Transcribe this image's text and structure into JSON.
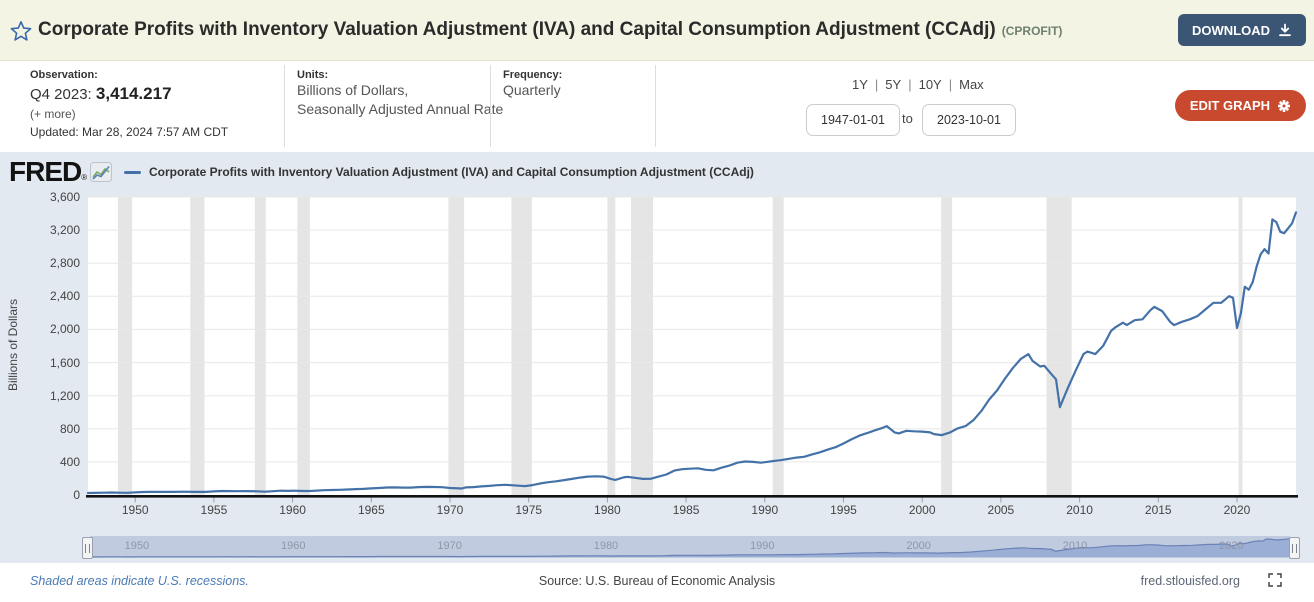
{
  "header": {
    "title": "Corporate Profits with Inventory Valuation Adjustment (IVA) and Capital Consumption Adjustment (CCAdj)",
    "series_id": "(CPROFIT)",
    "download_label": "DOWNLOAD"
  },
  "observation": {
    "label": "Observation:",
    "period": "Q4 2023:",
    "value": "3,414.217",
    "more_label": "(+ more)",
    "updated": "Updated: Mar 28, 2024 7:57 AM CDT"
  },
  "units": {
    "label": "Units:",
    "line1": "Billions of Dollars,",
    "line2": "Seasonally Adjusted Annual Rate"
  },
  "frequency": {
    "label": "Frequency:",
    "value": "Quarterly"
  },
  "range_selector": {
    "options": [
      "1Y",
      "5Y",
      "10Y",
      "Max"
    ],
    "separator": "|",
    "start_date": "1947-01-01",
    "to_label": "to",
    "end_date": "2023-10-01"
  },
  "edit_graph": {
    "label": "EDIT GRAPH"
  },
  "chart_header": {
    "logo": "FRED",
    "reg_mark": "®",
    "legend_label": "Corporate Profits with Inventory Valuation Adjustment (IVA) and Capital Consumption Adjustment (CCAdj)"
  },
  "footer": {
    "recession_note": "Shaded areas indicate U.S. recessions.",
    "source": "Source: U.S. Bureau of Economic Analysis",
    "site": "fred.stlouisfed.org"
  },
  "colors": {
    "line": "#4472a8",
    "recession_band": "#e5e5e5",
    "gridline": "#e8e8e8",
    "axis": "#111111",
    "plot_bg": "#ffffff",
    "chart_bg": "#e3e9f1",
    "nav_bg": "#c0cbe0",
    "nav_fill": "#9aaed6",
    "nav_stroke": "#6b82b5",
    "download_button": "#3b5675",
    "edit_button": "#c8492e",
    "header_bg": "#f4f4e4"
  },
  "chart_data": {
    "type": "line",
    "title": "Corporate Profits with Inventory Valuation Adjustment (IVA) and Capital Consumption Adjustment (CCAdj)",
    "ylabel": "Billions of Dollars",
    "xlabel": "",
    "ylim": [
      0,
      3600
    ],
    "xlim": [
      1947,
      2023.75
    ],
    "grid": true,
    "legend_position": "top",
    "y_ticks": [
      0,
      400,
      800,
      1200,
      1600,
      2000,
      2400,
      2800,
      3200,
      3600
    ],
    "x_ticks": [
      1950,
      1955,
      1960,
      1965,
      1970,
      1975,
      1980,
      1985,
      1990,
      1995,
      2000,
      2005,
      2010,
      2015,
      2020
    ],
    "nav_ticks": [
      1950,
      1960,
      1970,
      1980,
      1990,
      2000,
      2010,
      2020
    ],
    "last_observation": {
      "period": "Q4 2023",
      "value": 3414.217
    },
    "recessions": [
      [
        1948.9,
        1949.8
      ],
      [
        1953.5,
        1954.4
      ],
      [
        1957.6,
        1958.3
      ],
      [
        1960.3,
        1961.1
      ],
      [
        1969.9,
        1970.9
      ],
      [
        1973.9,
        1975.2
      ],
      [
        1980.0,
        1980.5
      ],
      [
        1981.5,
        1982.9
      ],
      [
        1990.5,
        1991.2
      ],
      [
        2001.2,
        2001.9
      ],
      [
        2007.9,
        2009.5
      ],
      [
        2020.1,
        2020.35
      ]
    ],
    "series": [
      {
        "name": "Corporate Profits with Inventory Valuation Adjustment (IVA) and Capital Consumption Adjustment (CCAdj)",
        "units": "Billions of Dollars, Seasonally Adjusted Annual Rate",
        "points": [
          [
            1947,
            24
          ],
          [
            1947.5,
            25
          ],
          [
            1948,
            28
          ],
          [
            1948.5,
            30
          ],
          [
            1949,
            28
          ],
          [
            1949.5,
            27
          ],
          [
            1950,
            31
          ],
          [
            1950.5,
            36
          ],
          [
            1951,
            37
          ],
          [
            1951.5,
            39
          ],
          [
            1952,
            38
          ],
          [
            1952.5,
            38
          ],
          [
            1953,
            40
          ],
          [
            1953.75,
            37
          ],
          [
            1954.5,
            38
          ],
          [
            1955,
            44
          ],
          [
            1955.5,
            48
          ],
          [
            1956,
            47
          ],
          [
            1956.5,
            46
          ],
          [
            1957,
            47
          ],
          [
            1957.75,
            45
          ],
          [
            1958.25,
            40
          ],
          [
            1958.75,
            46
          ],
          [
            1959.25,
            52
          ],
          [
            1959.75,
            50
          ],
          [
            1960,
            52
          ],
          [
            1960.75,
            48
          ],
          [
            1961.25,
            50
          ],
          [
            1962,
            58
          ],
          [
            1962.5,
            60
          ],
          [
            1963,
            63
          ],
          [
            1963.5,
            67
          ],
          [
            1964,
            71
          ],
          [
            1964.5,
            74
          ],
          [
            1965,
            80
          ],
          [
            1965.5,
            85
          ],
          [
            1966,
            91
          ],
          [
            1966.5,
            92
          ],
          [
            1967,
            89
          ],
          [
            1967.5,
            90
          ],
          [
            1968,
            95
          ],
          [
            1968.5,
            98
          ],
          [
            1969,
            97
          ],
          [
            1969.5,
            94
          ],
          [
            1970,
            85
          ],
          [
            1970.75,
            79
          ],
          [
            1971,
            92
          ],
          [
            1971.5,
            96
          ],
          [
            1972,
            104
          ],
          [
            1972.5,
            110
          ],
          [
            1973,
            118
          ],
          [
            1973.5,
            123
          ],
          [
            1974,
            117
          ],
          [
            1974.75,
            108
          ],
          [
            1975.25,
            120
          ],
          [
            1975.75,
            140
          ],
          [
            1976.25,
            155
          ],
          [
            1976.75,
            165
          ],
          [
            1977.25,
            180
          ],
          [
            1977.75,
            195
          ],
          [
            1978.25,
            210
          ],
          [
            1978.75,
            222
          ],
          [
            1979.25,
            226
          ],
          [
            1979.75,
            222
          ],
          [
            1980.25,
            192
          ],
          [
            1980.5,
            182
          ],
          [
            1981,
            212
          ],
          [
            1981.25,
            220
          ],
          [
            1981.75,
            208
          ],
          [
            1982.25,
            194
          ],
          [
            1982.75,
            196
          ],
          [
            1983.25,
            222
          ],
          [
            1983.75,
            248
          ],
          [
            1984.25,
            295
          ],
          [
            1984.75,
            312
          ],
          [
            1985.25,
            318
          ],
          [
            1985.75,
            322
          ],
          [
            1986.25,
            304
          ],
          [
            1986.75,
            298
          ],
          [
            1987.25,
            330
          ],
          [
            1987.75,
            355
          ],
          [
            1988.25,
            390
          ],
          [
            1988.75,
            405
          ],
          [
            1989.25,
            400
          ],
          [
            1989.75,
            390
          ],
          [
            1990.25,
            402
          ],
          [
            1990.5,
            410
          ],
          [
            1991,
            420
          ],
          [
            1991.5,
            436
          ],
          [
            1992,
            452
          ],
          [
            1992.5,
            462
          ],
          [
            1993,
            490
          ],
          [
            1993.5,
            516
          ],
          [
            1994,
            548
          ],
          [
            1994.5,
            578
          ],
          [
            1995,
            622
          ],
          [
            1995.5,
            672
          ],
          [
            1996,
            716
          ],
          [
            1996.5,
            748
          ],
          [
            1997,
            782
          ],
          [
            1997.5,
            812
          ],
          [
            1997.75,
            832
          ],
          [
            1998.25,
            756
          ],
          [
            1998.5,
            744
          ],
          [
            1999,
            776
          ],
          [
            1999.5,
            770
          ],
          [
            2000,
            766
          ],
          [
            2000.5,
            756
          ],
          [
            2000.75,
            736
          ],
          [
            2001.25,
            724
          ],
          [
            2001.75,
            754
          ],
          [
            2002.25,
            804
          ],
          [
            2002.75,
            832
          ],
          [
            2003.25,
            902
          ],
          [
            2003.75,
            1012
          ],
          [
            2004.25,
            1152
          ],
          [
            2004.75,
            1262
          ],
          [
            2005.25,
            1402
          ],
          [
            2005.75,
            1532
          ],
          [
            2006.25,
            1642
          ],
          [
            2006.75,
            1702
          ],
          [
            2007,
            1622
          ],
          [
            2007.5,
            1552
          ],
          [
            2007.75,
            1562
          ],
          [
            2008.25,
            1452
          ],
          [
            2008.5,
            1398
          ],
          [
            2008.75,
            1062
          ],
          [
            2009.25,
            1292
          ],
          [
            2009.75,
            1502
          ],
          [
            2010.25,
            1702
          ],
          [
            2010.5,
            1732
          ],
          [
            2010.75,
            1718
          ],
          [
            2011,
            1702
          ],
          [
            2011.5,
            1802
          ],
          [
            2012,
            1982
          ],
          [
            2012.25,
            2022
          ],
          [
            2012.75,
            2082
          ],
          [
            2013,
            2052
          ],
          [
            2013.5,
            2112
          ],
          [
            2014,
            2122
          ],
          [
            2014.5,
            2232
          ],
          [
            2014.75,
            2272
          ],
          [
            2015.25,
            2222
          ],
          [
            2015.75,
            2092
          ],
          [
            2016,
            2052
          ],
          [
            2016.5,
            2092
          ],
          [
            2017,
            2122
          ],
          [
            2017.5,
            2162
          ],
          [
            2018,
            2242
          ],
          [
            2018.5,
            2322
          ],
          [
            2019,
            2322
          ],
          [
            2019.5,
            2402
          ],
          [
            2019.75,
            2382
          ],
          [
            2020,
            2017
          ],
          [
            2020.25,
            2196
          ],
          [
            2020.5,
            2516
          ],
          [
            2020.75,
            2480
          ],
          [
            2021,
            2572
          ],
          [
            2021.25,
            2763
          ],
          [
            2021.5,
            2907
          ],
          [
            2021.75,
            2971
          ],
          [
            2022,
            2918
          ],
          [
            2022.25,
            3329
          ],
          [
            2022.5,
            3297
          ],
          [
            2022.75,
            3179
          ],
          [
            2023,
            3163
          ],
          [
            2023.25,
            3222
          ],
          [
            2023.5,
            3282
          ],
          [
            2023.75,
            3414.217
          ]
        ]
      }
    ]
  }
}
